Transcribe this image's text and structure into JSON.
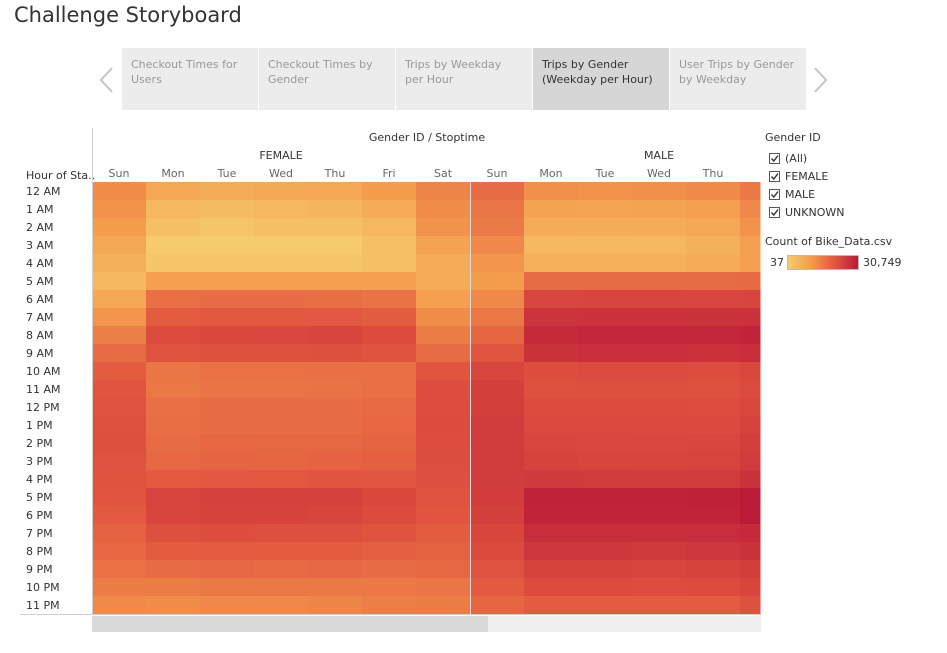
{
  "page": {
    "title": "Challenge Storyboard"
  },
  "nav": {
    "prev_icon": "chevron-left-icon",
    "next_icon": "chevron-right-icon",
    "tabs": [
      {
        "label": "Checkout Times for Users",
        "active": false
      },
      {
        "label": "Checkout Times by Gender",
        "active": false
      },
      {
        "label": "Trips by Weekday per Hour",
        "active": false
      },
      {
        "label": "Trips by Gender (Weekday per Hour)",
        "active": true
      },
      {
        "label": "User Trips by Gender by Weekday",
        "active": false
      }
    ]
  },
  "chart_data": {
    "type": "heatmap",
    "title": "Gender ID / Stoptime",
    "row_header": "Hour of Sta..",
    "groups": [
      {
        "name": "FEMALE",
        "columns": [
          "Sun",
          "Mon",
          "Tue",
          "Wed",
          "Thu",
          "Fri",
          "Sat"
        ]
      },
      {
        "name": "MALE",
        "columns": [
          "Sun",
          "Mon",
          "Tue",
          "Wed",
          "Thu",
          ""
        ]
      }
    ],
    "rows": [
      "12 AM",
      "1 AM",
      "2 AM",
      "3 AM",
      "4 AM",
      "5 AM",
      "6 AM",
      "7 AM",
      "8 AM",
      "9 AM",
      "10 AM",
      "11 AM",
      "12 PM",
      "1 PM",
      "2 PM",
      "3 PM",
      "4 PM",
      "5 PM",
      "6 PM",
      "7 PM",
      "8 PM",
      "9 PM",
      "10 PM",
      "11 PM"
    ],
    "range": [
      37,
      30749
    ],
    "colors": [
      "#f5cb6e",
      "#f49b4c",
      "#e1553f",
      "#bb1a38"
    ],
    "values": [
      [
        1500,
        700,
        600,
        650,
        700,
        1000,
        1800,
        3200,
        1400,
        1300,
        1400,
        1600,
        2400
      ],
      [
        1300,
        400,
        350,
        400,
        450,
        600,
        1500,
        2600,
        800,
        750,
        800,
        900,
        1700
      ],
      [
        1000,
        300,
        250,
        300,
        300,
        400,
        1300,
        2300,
        600,
        550,
        600,
        700,
        1300
      ],
      [
        700,
        200,
        200,
        200,
        200,
        300,
        800,
        1700,
        400,
        400,
        400,
        500,
        900
      ],
      [
        500,
        250,
        250,
        250,
        250,
        300,
        600,
        1200,
        500,
        500,
        500,
        600,
        900
      ],
      [
        400,
        900,
        900,
        900,
        900,
        900,
        600,
        1000,
        3200,
        3300,
        3300,
        3300,
        3500
      ],
      [
        700,
        3000,
        3200,
        3200,
        3100,
        2800,
        900,
        1700,
        8500,
        9000,
        9000,
        8700,
        8800
      ],
      [
        1200,
        4800,
        5200,
        5200,
        5300,
        4700,
        1500,
        2500,
        14500,
        15500,
        15500,
        15000,
        15500
      ],
      [
        2100,
        7500,
        8300,
        8200,
        8800,
        7500,
        2200,
        3800,
        19500,
        21500,
        21500,
        21000,
        23500
      ],
      [
        3300,
        6000,
        6500,
        6500,
        6700,
        6000,
        3300,
        5800,
        15000,
        16500,
        16500,
        16000,
        17500
      ],
      [
        4800,
        2600,
        2900,
        2900,
        3000,
        3000,
        5800,
        8500,
        7000,
        7500,
        7500,
        7300,
        8300
      ],
      [
        5800,
        2500,
        2700,
        2700,
        2800,
        3000,
        7000,
        10000,
        6400,
        6600,
        6600,
        6400,
        7400
      ],
      [
        6300,
        3000,
        3200,
        3200,
        3200,
        3500,
        7300,
        10500,
        7400,
        7400,
        7400,
        7300,
        8300
      ],
      [
        6500,
        3100,
        3200,
        3200,
        3400,
        3700,
        7500,
        11500,
        8000,
        8000,
        7800,
        7900,
        9500
      ],
      [
        6600,
        3400,
        3700,
        3600,
        3600,
        4000,
        7200,
        12000,
        8500,
        8200,
        8200,
        8500,
        10500
      ],
      [
        6300,
        3700,
        3900,
        3800,
        4100,
        4400,
        7100,
        12000,
        9500,
        9100,
        9000,
        9300,
        12000
      ],
      [
        6000,
        5100,
        5300,
        5200,
        5800,
        5600,
        6800,
        11800,
        12500,
        12000,
        11800,
        12000,
        15500
      ],
      [
        5800,
        9300,
        9900,
        9800,
        9800,
        8300,
        6300,
        11300,
        24800,
        24800,
        24500,
        25500,
        30749
      ],
      [
        5100,
        9000,
        9700,
        9500,
        8800,
        7500,
        5700,
        10100,
        23500,
        23800,
        23200,
        24000,
        29500
      ],
      [
        4300,
        6600,
        7000,
        6800,
        6800,
        5900,
        4900,
        9000,
        17500,
        17500,
        17000,
        18000,
        20000
      ],
      [
        3700,
        4800,
        5000,
        4800,
        4900,
        4400,
        4200,
        7700,
        13000,
        13000,
        12500,
        13500,
        15500
      ],
      [
        2900,
        3300,
        3600,
        3500,
        3600,
        3200,
        3600,
        6300,
        9500,
        9500,
        9000,
        9500,
        11000
      ],
      [
        2200,
        2200,
        2500,
        2500,
        2400,
        2400,
        2600,
        5100,
        7500,
        7500,
        7200,
        7500,
        9000
      ],
      [
        1600,
        1500,
        1700,
        1700,
        1800,
        2100,
        2200,
        3800,
        5000,
        5000,
        4800,
        5000,
        6500
      ]
    ]
  },
  "legend": {
    "filter_title": "Gender ID",
    "check_icon": "check-icon",
    "items": [
      {
        "label": "(All)",
        "checked": true
      },
      {
        "label": "FEMALE",
        "checked": true
      },
      {
        "label": "MALE",
        "checked": true
      },
      {
        "label": "UNKNOWN",
        "checked": true
      }
    ],
    "color_title": "Count of Bike_Data.csv",
    "min_label": "37",
    "max_label": "30,749"
  }
}
